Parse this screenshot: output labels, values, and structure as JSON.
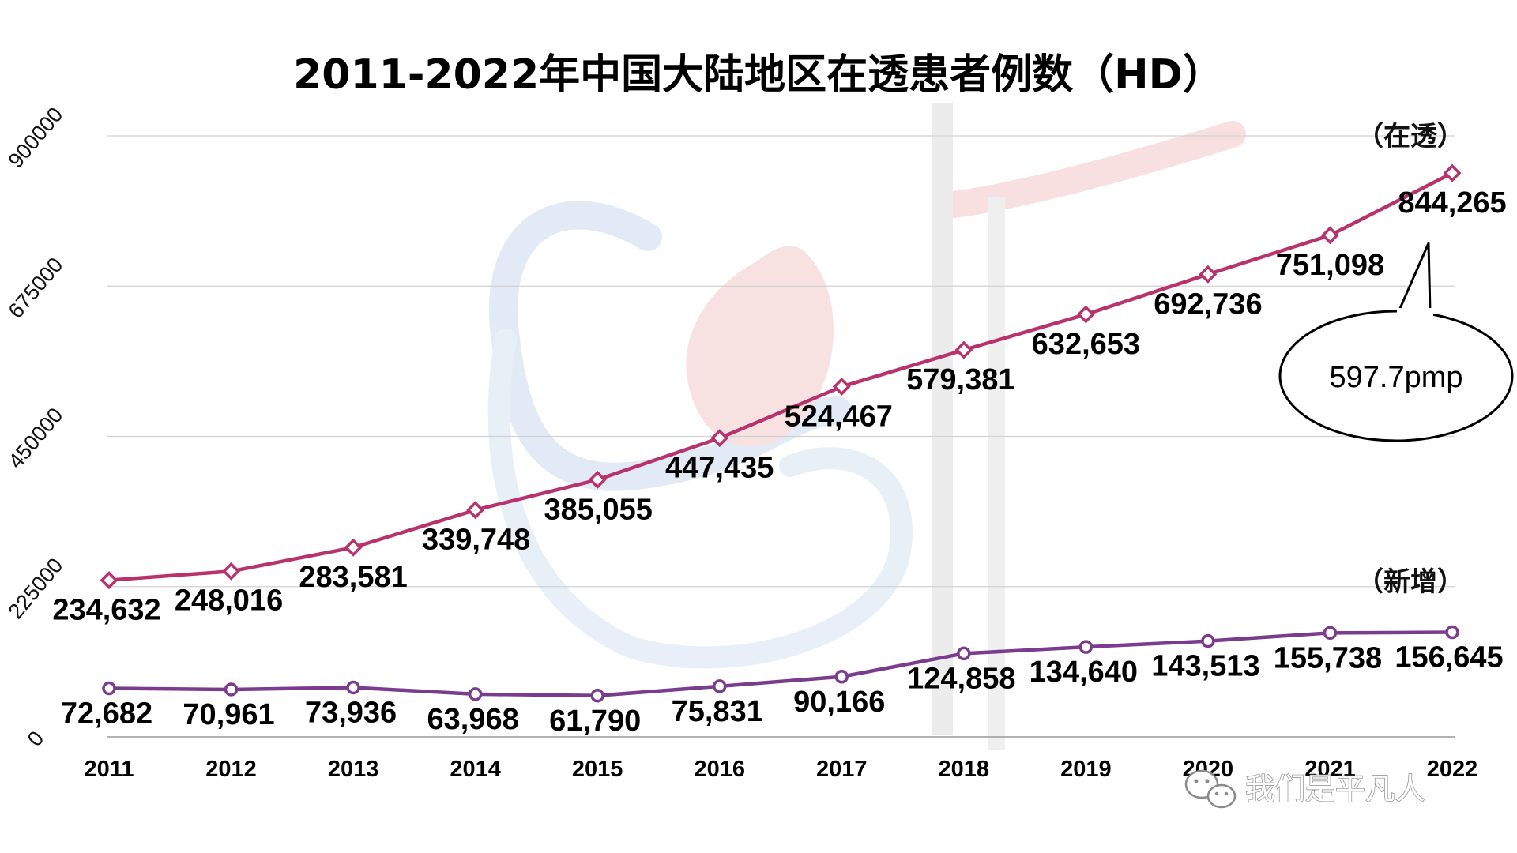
{
  "chart_data": {
    "type": "line",
    "title": "2011-2022年中国大陆地区在透患者例数（HD）",
    "categories": [
      "2011",
      "2012",
      "2013",
      "2014",
      "2015",
      "2016",
      "2017",
      "2018",
      "2019",
      "2020",
      "2021",
      "2022"
    ],
    "ylim": [
      0,
      900000
    ],
    "yticks": [
      "0",
      "225000",
      "450000",
      "675000",
      "900000"
    ],
    "ytick_values": [
      0,
      225000,
      450000,
      675000,
      900000
    ],
    "grid": true,
    "series": [
      {
        "name": "（在透）",
        "color": "#b8336e",
        "values": [
          234632,
          248016,
          283581,
          339748,
          385055,
          447435,
          524467,
          579381,
          632653,
          692736,
          751098,
          844265
        ],
        "labels": [
          "234,632",
          "248,016",
          "283,581",
          "339,748",
          "385,055",
          "447,435",
          "524,467",
          "579,381",
          "632,653",
          "692,736",
          "751,098",
          "844,265"
        ]
      },
      {
        "name": "（新增）",
        "color": "#7b3b8e",
        "values": [
          72682,
          70961,
          73936,
          63968,
          61790,
          75831,
          90166,
          124858,
          134640,
          143513,
          155738,
          156645
        ],
        "labels": [
          "72,682",
          "70,961",
          "73,936",
          "63,968",
          "61,790",
          "75,831",
          "90,166",
          "124,858",
          "134,640",
          "143,513",
          "155,738",
          "156,645"
        ]
      }
    ],
    "annotation": {
      "text": "597.7pmp",
      "target_series": 0,
      "target_index": 11
    }
  },
  "watermark": {
    "text": "我们是平凡人",
    "icon": "wechat-icon"
  }
}
